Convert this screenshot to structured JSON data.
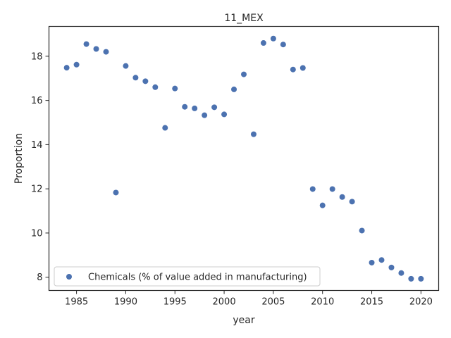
{
  "chart_data": {
    "type": "scatter",
    "title": "11_MEX",
    "xlabel": "year",
    "ylabel": "Proportion",
    "xlim": [
      1982.2,
      2021.8
    ],
    "ylim": [
      7.4,
      19.35
    ],
    "xticks": [
      1985,
      1990,
      1995,
      2000,
      2005,
      2010,
      2015,
      2020
    ],
    "yticks": [
      8,
      10,
      12,
      14,
      16,
      18
    ],
    "grid": false,
    "legend": {
      "position": "lower-left"
    },
    "series": [
      {
        "name": "Chemicals (% of value added in manufacturing)",
        "color": "#4c72b0",
        "points": [
          {
            "x": 1984,
            "y": 17.48
          },
          {
            "x": 1985,
            "y": 17.62
          },
          {
            "x": 1986,
            "y": 18.55
          },
          {
            "x": 1987,
            "y": 18.33
          },
          {
            "x": 1988,
            "y": 18.2
          },
          {
            "x": 1989,
            "y": 11.83
          },
          {
            "x": 1990,
            "y": 17.56
          },
          {
            "x": 1991,
            "y": 17.03
          },
          {
            "x": 1992,
            "y": 16.87
          },
          {
            "x": 1993,
            "y": 16.6
          },
          {
            "x": 1994,
            "y": 14.76
          },
          {
            "x": 1995,
            "y": 16.54
          },
          {
            "x": 1996,
            "y": 15.71
          },
          {
            "x": 1997,
            "y": 15.64
          },
          {
            "x": 1998,
            "y": 15.33
          },
          {
            "x": 1999,
            "y": 15.69
          },
          {
            "x": 2000,
            "y": 15.37
          },
          {
            "x": 2001,
            "y": 16.5
          },
          {
            "x": 2002,
            "y": 17.18
          },
          {
            "x": 2003,
            "y": 14.47
          },
          {
            "x": 2004,
            "y": 18.6
          },
          {
            "x": 2005,
            "y": 18.8
          },
          {
            "x": 2006,
            "y": 18.53
          },
          {
            "x": 2007,
            "y": 17.4
          },
          {
            "x": 2008,
            "y": 17.47
          },
          {
            "x": 2009,
            "y": 11.99
          },
          {
            "x": 2010,
            "y": 11.25
          },
          {
            "x": 2011,
            "y": 11.99
          },
          {
            "x": 2012,
            "y": 11.63
          },
          {
            "x": 2013,
            "y": 11.42
          },
          {
            "x": 2014,
            "y": 10.11
          },
          {
            "x": 2015,
            "y": 8.66
          },
          {
            "x": 2016,
            "y": 8.78
          },
          {
            "x": 2017,
            "y": 8.44
          },
          {
            "x": 2018,
            "y": 8.19
          },
          {
            "x": 2019,
            "y": 7.93
          },
          {
            "x": 2020,
            "y": 7.93
          }
        ]
      }
    ]
  }
}
